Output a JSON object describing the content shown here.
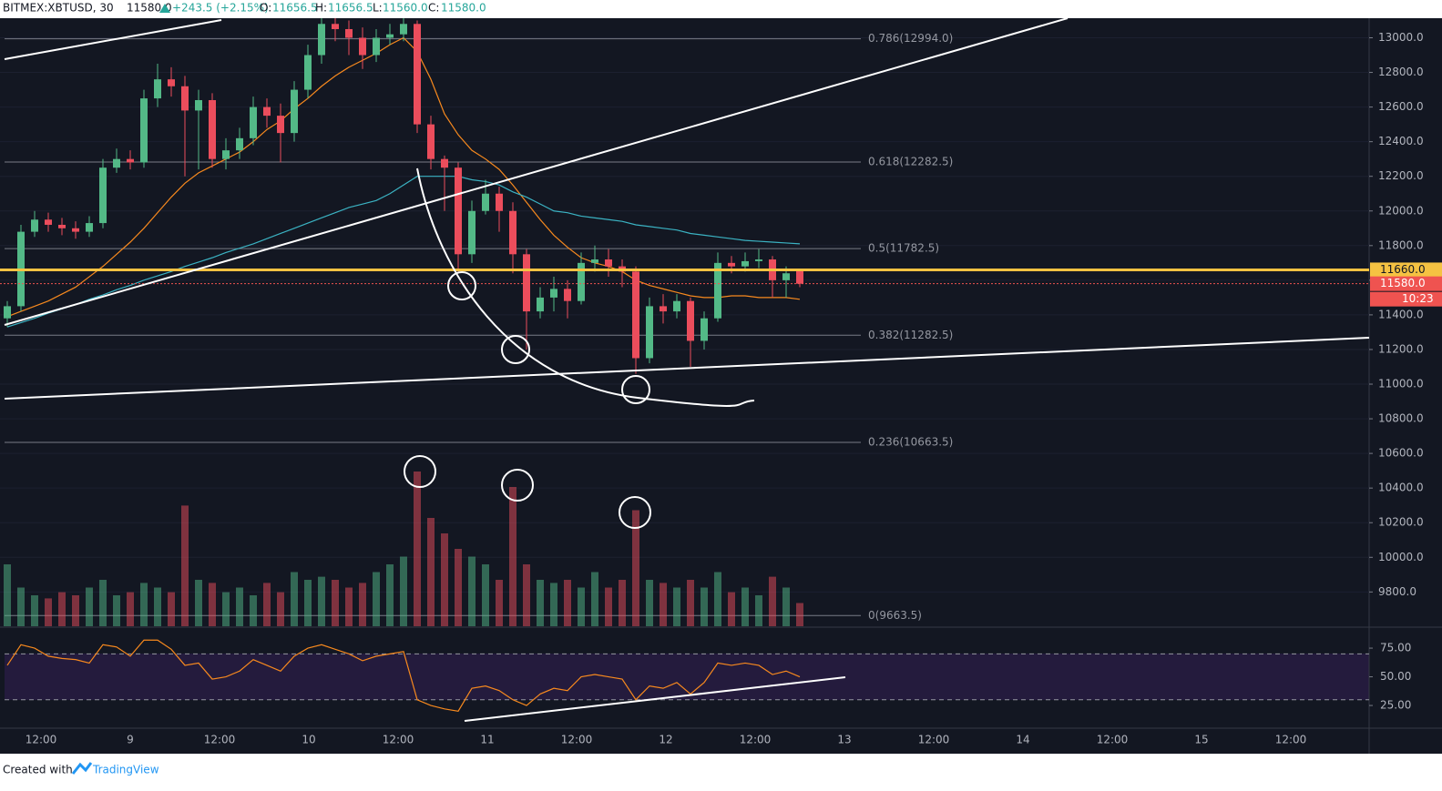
{
  "header": {
    "symbol": "BITMEX:XBTUSD, 30",
    "last": "11580.0",
    "change": "+243.5 (+2.15%)",
    "o_label": "O:",
    "o": "11656.5",
    "h_label": "H:",
    "h": "11656.5",
    "l_label": "L:",
    "l": "11560.0",
    "c_label": "C:",
    "c": "11580.0"
  },
  "footer": {
    "text": "Created with",
    "brand": "TradingView"
  },
  "chart_data": {
    "type": "candlestick",
    "open": [
      11380,
      11450,
      11880,
      11950,
      11920,
      11900,
      11880,
      11930,
      12250,
      12300,
      12280,
      12650,
      12760,
      12720,
      12580,
      12640,
      12300,
      12350,
      12420,
      12600,
      12550,
      12450,
      12700,
      12900,
      13080,
      13050,
      13000,
      12900,
      13000,
      13020,
      13080,
      12500,
      12300,
      12250,
      11750,
      12000,
      12100,
      12000,
      11750,
      11420,
      11500,
      11550,
      11480,
      11700,
      11720,
      11680,
      11650,
      11150,
      11450,
      11420,
      11480,
      11250,
      11380,
      11700,
      11680,
      11710,
      11720,
      11600,
      11656.5
    ],
    "high": [
      11480,
      11920,
      12000,
      11990,
      11960,
      11940,
      11970,
      12300,
      12360,
      12350,
      12700,
      12850,
      12830,
      12780,
      12700,
      12680,
      12420,
      12480,
      12660,
      12650,
      12620,
      12750,
      12960,
      13113,
      13113,
      13100,
      13060,
      13050,
      13080,
      13113,
      13100,
      12550,
      12320,
      12280,
      12060,
      12180,
      12140,
      12050,
      11780,
      11560,
      11620,
      11600,
      11760,
      11800,
      11780,
      11720,
      11680,
      11500,
      11520,
      11520,
      11500,
      11420,
      11760,
      11740,
      11760,
      11780,
      11740,
      11680,
      11656.5
    ],
    "low": [
      11330,
      11420,
      11850,
      11880,
      11860,
      11840,
      11850,
      11900,
      12220,
      12240,
      12250,
      12600,
      12660,
      12200,
      12240,
      12250,
      12240,
      12300,
      12380,
      12480,
      12280,
      12400,
      12650,
      12850,
      12980,
      12900,
      12820,
      12860,
      12960,
      12980,
      12450,
      12240,
      12000,
      11650,
      11700,
      11980,
      11880,
      11640,
      11200,
      11380,
      11420,
      11380,
      11460,
      11650,
      11620,
      11560,
      11060,
      11120,
      11350,
      11380,
      11100,
      11200,
      11360,
      11640,
      11650,
      11670,
      11500,
      11500,
      11560
    ],
    "close": [
      11450,
      11880,
      11950,
      11920,
      11900,
      11880,
      11930,
      12250,
      12300,
      12280,
      12650,
      12760,
      12720,
      12580,
      12640,
      12300,
      12350,
      12420,
      12600,
      12550,
      12450,
      12700,
      12900,
      13080,
      13050,
      13000,
      12900,
      13000,
      13020,
      13080,
      12500,
      12300,
      12250,
      11750,
      12000,
      12100,
      12000,
      11750,
      11420,
      11500,
      11550,
      11480,
      11700,
      11720,
      11680,
      11650,
      11150,
      11450,
      11420,
      11480,
      11250,
      11380,
      11700,
      11680,
      11710,
      11720,
      11600,
      11640,
      11580
    ],
    "colors": {
      "up": "#53b987",
      "down": "#eb4d5c"
    },
    "ylim": [
      9602,
      13113
    ],
    "yticks": [
      {
        "value": 9800,
        "label": "9800.0"
      },
      {
        "value": 10000,
        "label": "10000.0"
      },
      {
        "value": 10200,
        "label": "10200.0"
      },
      {
        "value": 10400,
        "label": "10400.0"
      },
      {
        "value": 10600,
        "label": "10600.0"
      },
      {
        "value": 10800,
        "label": "10800.0"
      },
      {
        "value": 11000,
        "label": "11000.0"
      },
      {
        "value": 11200,
        "label": "11200.0"
      },
      {
        "value": 11400,
        "label": "11400.0"
      },
      {
        "value": 11600,
        "label": "11600.0"
      },
      {
        "value": 11800,
        "label": "11800.0"
      },
      {
        "value": 12000,
        "label": "12000.0"
      },
      {
        "value": 12200,
        "label": "12200.0"
      },
      {
        "value": 12400,
        "label": "12400.0"
      },
      {
        "value": 12600,
        "label": "12600.0"
      },
      {
        "value": 12800,
        "label": "12800.0"
      },
      {
        "value": 13000,
        "label": "13000.0"
      }
    ],
    "x_labels": [
      "12:00",
      "9",
      "12:00",
      "10",
      "12:00",
      "11",
      "12:00",
      "12",
      "12:00",
      "13",
      "12:00",
      "14",
      "12:00",
      "15",
      "12:00"
    ],
    "moving_averages": [
      {
        "color": "#f7891e",
        "values": [
          11390,
          11420,
          11450,
          11480,
          11520,
          11560,
          11620,
          11680,
          11750,
          11820,
          11900,
          11990,
          12080,
          12160,
          12220,
          12260,
          12300,
          12340,
          12400,
          12470,
          12520,
          12590,
          12650,
          12720,
          12780,
          12830,
          12870,
          12910,
          12960,
          13000,
          12920,
          12760,
          12560,
          12440,
          12350,
          12300,
          12240,
          12150,
          12050,
          11950,
          11860,
          11790,
          11730,
          11700,
          11680,
          11650,
          11600,
          11570,
          11550,
          11530,
          11510,
          11500,
          11500,
          11510,
          11510,
          11500,
          11500,
          11500,
          11490
        ]
      },
      {
        "color": "#3bb3c3",
        "values": [
          11330,
          11355,
          11380,
          11410,
          11435,
          11460,
          11490,
          11515,
          11545,
          11570,
          11600,
          11625,
          11650,
          11680,
          11705,
          11730,
          11760,
          11785,
          11810,
          11840,
          11870,
          11900,
          11930,
          11960,
          11990,
          12020,
          12040,
          12060,
          12100,
          12150,
          12200,
          12200,
          12200,
          12200,
          12180,
          12170,
          12150,
          12110,
          12080,
          12040,
          12000,
          11990,
          11970,
          11960,
          11950,
          11940,
          11920,
          11910,
          11900,
          11890,
          11870,
          11860,
          11850,
          11840,
          11830,
          11825,
          11820,
          11815,
          11810
        ]
      }
    ],
    "volume": [
      40,
      25,
      20,
      18,
      22,
      20,
      25,
      30,
      20,
      22,
      28,
      25,
      22,
      78,
      30,
      28,
      22,
      25,
      20,
      28,
      22,
      35,
      30,
      32,
      30,
      25,
      28,
      35,
      40,
      45,
      100,
      70,
      60,
      50,
      45,
      40,
      30,
      90,
      40,
      30,
      28,
      30,
      25,
      35,
      25,
      30,
      75,
      30,
      28,
      25,
      30,
      25,
      35,
      22,
      25,
      20,
      32,
      25,
      15
    ],
    "fib_levels": [
      {
        "value": 12994.0,
        "label": "0.786(12994.0)"
      },
      {
        "value": 12282.5,
        "label": "0.618(12282.5)"
      },
      {
        "value": 11782.5,
        "label": "0.5(11782.5)"
      },
      {
        "value": 11282.5,
        "label": "0.382(11282.5)"
      },
      {
        "value": 10663.5,
        "label": "0.236(10663.5)"
      },
      {
        "value": 9663.5,
        "label": "0(9663.5)"
      }
    ],
    "price_lines": [
      {
        "value": 11660,
        "label": "11660.0",
        "color": "#f5c242"
      },
      {
        "value": 11580,
        "label": "11580.0",
        "color": "#ef5350"
      }
    ],
    "countdown": "10:23",
    "grid": true,
    "rsi": {
      "values": [
        60,
        78,
        75,
        68,
        66,
        65,
        62,
        78,
        76,
        68,
        82,
        82,
        74,
        60,
        62,
        48,
        50,
        55,
        65,
        60,
        55,
        68,
        75,
        78,
        74,
        70,
        64,
        68,
        70,
        72,
        30,
        25,
        22,
        20,
        40,
        42,
        38,
        30,
        25,
        35,
        40,
        38,
        50,
        52,
        50,
        48,
        30,
        42,
        40,
        45,
        35,
        45,
        62,
        60,
        62,
        60,
        52,
        55,
        50
      ],
      "color": "#f7891e",
      "ylim": [
        5.2,
        92.5
      ],
      "yticks": [
        {
          "value": 75,
          "label": "75.00"
        },
        {
          "value": 50,
          "label": "50.00"
        },
        {
          "value": 25,
          "label": "25.00"
        }
      ],
      "bands": [
        70,
        30
      ]
    }
  }
}
